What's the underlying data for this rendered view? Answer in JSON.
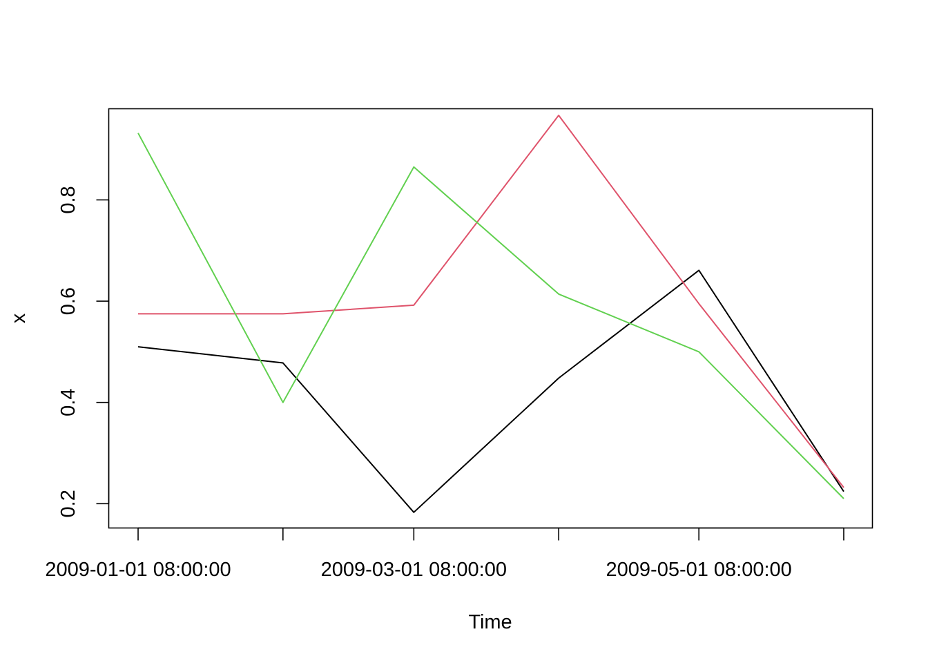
{
  "chart_data": {
    "type": "line",
    "title": "",
    "xlabel": "Time",
    "ylabel": "x",
    "x": [
      "2009-01-01 08:00:00",
      "2009-02-01 08:00:00",
      "2009-03-01 08:00:00",
      "2009-04-01 08:00:00",
      "2009-05-01 08:00:00",
      "2009-06-01 08:00:00"
    ],
    "x_tick_labels": [
      "2009-01-01 08:00:00",
      "",
      "2009-03-01 08:00:00",
      "",
      "2009-05-01 08:00:00",
      ""
    ],
    "y_ticks": [
      "0.2",
      "0.4",
      "0.6",
      "0.8"
    ],
    "ylim": [
      0.152,
      0.98
    ],
    "grid": false,
    "legend": "none",
    "series": [
      {
        "color": "#000000",
        "values": [
          0.51,
          0.478,
          0.183,
          0.448,
          0.661,
          0.224
        ]
      },
      {
        "color": "#DF536B",
        "values": [
          0.575,
          0.575,
          0.592,
          0.967,
          0.595,
          0.232
        ]
      },
      {
        "color": "#61D04F",
        "values": [
          0.932,
          0.4,
          0.865,
          0.614,
          0.5,
          0.21
        ]
      }
    ]
  }
}
